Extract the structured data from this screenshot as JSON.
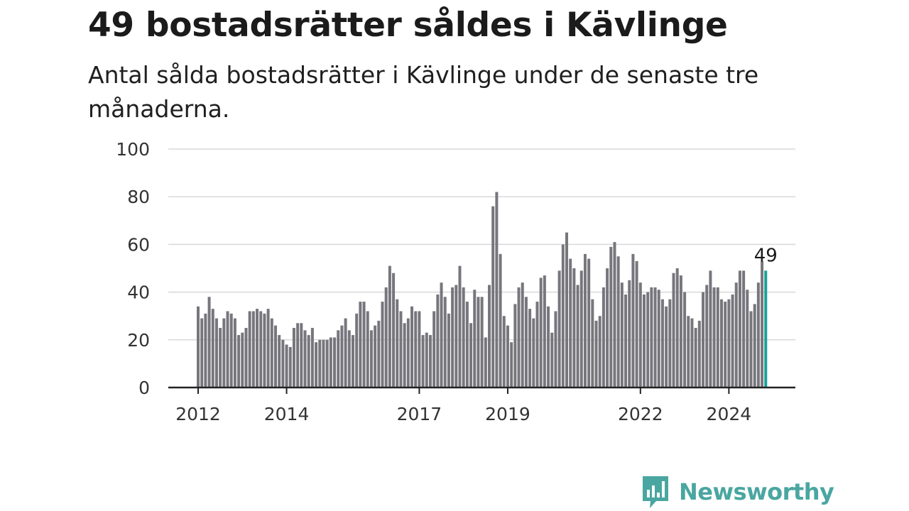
{
  "header": {
    "title": "49 bostadsrätter såldes i Kävlinge",
    "subtitle": "Antal sålda bostadsrätter i Kävlinge under de senaste tre månaderna."
  },
  "brand": {
    "name": "Newsworthy",
    "icon": "newsworthy-logo-icon"
  },
  "colors": {
    "bar": "#77767d",
    "highlight": "#16a197",
    "grid": "#d9d9d9",
    "axis": "#222222",
    "brand": "#4aa6a0"
  },
  "chart_data": {
    "type": "bar",
    "title": "",
    "xlabel": "",
    "ylabel": "",
    "ylim": [
      0,
      100
    ],
    "y_ticks": [
      0,
      20,
      40,
      60,
      80,
      100
    ],
    "grid": true,
    "x_ticks": [
      {
        "label": "2012",
        "index": 0
      },
      {
        "label": "2014",
        "index": 24
      },
      {
        "label": "2017",
        "index": 60
      },
      {
        "label": "2019",
        "index": 84
      },
      {
        "label": "2022",
        "index": 120
      },
      {
        "label": "2024",
        "index": 144
      }
    ],
    "highlight": {
      "index": 154,
      "label": "49"
    },
    "values": [
      34,
      29,
      31,
      38,
      33,
      29,
      25,
      29,
      32,
      31,
      29,
      22,
      23,
      25,
      32,
      32,
      33,
      32,
      31,
      33,
      29,
      26,
      22,
      20,
      18,
      17,
      25,
      27,
      27,
      24,
      22,
      25,
      19,
      20,
      20,
      20,
      21,
      21,
      24,
      26,
      29,
      24,
      22,
      31,
      36,
      36,
      32,
      24,
      26,
      28,
      36,
      42,
      51,
      48,
      37,
      32,
      27,
      29,
      34,
      32,
      32,
      22,
      23,
      22,
      32,
      39,
      44,
      38,
      31,
      42,
      43,
      51,
      42,
      36,
      27,
      41,
      38,
      38,
      21,
      43,
      76,
      82,
      56,
      30,
      26,
      19,
      35,
      42,
      44,
      38,
      33,
      29,
      36,
      46,
      47,
      34,
      23,
      32,
      49,
      60,
      65,
      54,
      50,
      43,
      49,
      56,
      54,
      37,
      28,
      30,
      42,
      50,
      59,
      61,
      55,
      44,
      39,
      45,
      56,
      53,
      44,
      39,
      40,
      42,
      42,
      41,
      37,
      34,
      37,
      48,
      50,
      47,
      40,
      30,
      29,
      25,
      28,
      40,
      43,
      49,
      42,
      42,
      37,
      36,
      37,
      39,
      44,
      49,
      49,
      41,
      32,
      35,
      44,
      53,
      49
    ]
  }
}
